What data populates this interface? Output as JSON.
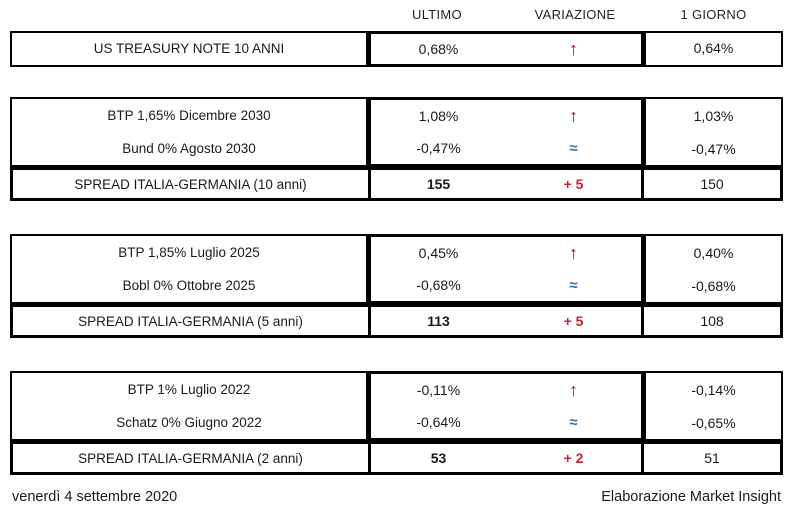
{
  "header": {
    "ultimo": "ULTIMO",
    "variazione": "VARIAZIONE",
    "giorno": "1 GIORNO"
  },
  "icons": {
    "up_arrow": "↑",
    "approx": "≈"
  },
  "colors": {
    "arrow_red": "#C00000",
    "change_red": "#C82333",
    "approx_blue": "#2E75B6",
    "border_black": "#000000",
    "text_dark": "#1A1A1A"
  },
  "blocks": [
    {
      "rows": [
        {
          "label": "US TREASURY NOTE 10 ANNI",
          "ultimo": "0,68%",
          "trend": "up",
          "giorno": "0,64%"
        }
      ]
    },
    {
      "rows": [
        {
          "label": "BTP 1,65% Dicembre 2030",
          "ultimo": "1,08%",
          "trend": "up",
          "giorno": "1,03%"
        },
        {
          "label": "Bund 0% Agosto 2030",
          "ultimo": "-0,47%",
          "trend": "approx",
          "giorno": "-0,47%"
        }
      ],
      "spread": {
        "label": "SPREAD ITALIA-GERMANIA (10 anni)",
        "ultimo": "155",
        "variazione": "+ 5",
        "giorno": "150"
      }
    },
    {
      "rows": [
        {
          "label": "BTP 1,85% Luglio 2025",
          "ultimo": "0,45%",
          "trend": "up",
          "giorno": "0,40%"
        },
        {
          "label": "Bobl 0% Ottobre 2025",
          "ultimo": "-0,68%",
          "trend": "approx",
          "giorno": "-0,68%"
        }
      ],
      "spread": {
        "label": "SPREAD ITALIA-GERMANIA (5 anni)",
        "ultimo": "113",
        "variazione": "+ 5",
        "giorno": "108"
      }
    },
    {
      "rows": [
        {
          "label": "BTP 1% Luglio 2022",
          "ultimo": "-0,11%",
          "trend": "up",
          "giorno": "-0,14%"
        },
        {
          "label": "Schatz 0% Giugno 2022",
          "ultimo": "-0,64%",
          "trend": "approx",
          "giorno": "-0,65%"
        }
      ],
      "spread": {
        "label": "SPREAD ITALIA-GERMANIA (2 anni)",
        "ultimo": "53",
        "variazione": "+ 2",
        "giorno": "51"
      }
    }
  ],
  "footer": {
    "date": "venerdì 4 settembre 2020",
    "credit": "Elaborazione Market Insight"
  }
}
